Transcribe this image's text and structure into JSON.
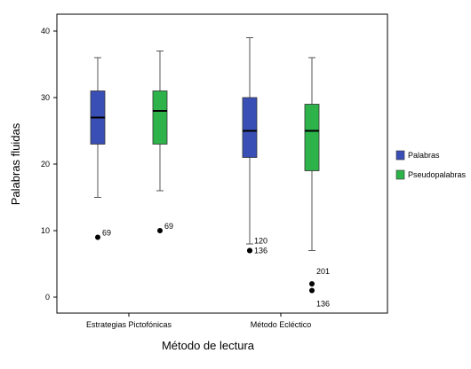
{
  "chart_data": {
    "type": "boxplot",
    "title": "",
    "xlabel": "Método de lectura",
    "ylabel": "Palabras fluidas",
    "ylim": [
      -2,
      45
    ],
    "yticks": [
      0,
      10,
      20,
      30,
      40
    ],
    "grid": false,
    "legend_position": "right",
    "categories": [
      "Estrategias Pictofónicas",
      "Método Ecléctico"
    ],
    "series": [
      {
        "name": "Palabras",
        "color": "#3a4fb5",
        "boxes": [
          {
            "whisker_low": 15,
            "q1": 23,
            "median": 27,
            "q3": 31,
            "whisker_high": 36,
            "outliers": [
              {
                "value": 9,
                "label": "69"
              }
            ]
          },
          {
            "whisker_low": 8,
            "q1": 21,
            "median": 25,
            "q3": 30,
            "whisker_high": 39,
            "outliers": [
              {
                "value": 7,
                "label": "120"
              },
              {
                "value": 7,
                "label": "136"
              }
            ]
          }
        ]
      },
      {
        "name": "Pseudopalabras",
        "color": "#2db34a",
        "boxes": [
          {
            "whisker_low": 16,
            "q1": 23,
            "median": 28,
            "q3": 31,
            "whisker_high": 37,
            "outliers": [
              {
                "value": 10,
                "label": "69"
              }
            ]
          },
          {
            "whisker_low": 7,
            "q1": 19,
            "median": 25,
            "q3": 29,
            "whisker_high": 36,
            "outliers": [
              {
                "value": 2,
                "label": "201"
              },
              {
                "value": 1,
                "label": "136"
              }
            ]
          }
        ]
      }
    ]
  }
}
